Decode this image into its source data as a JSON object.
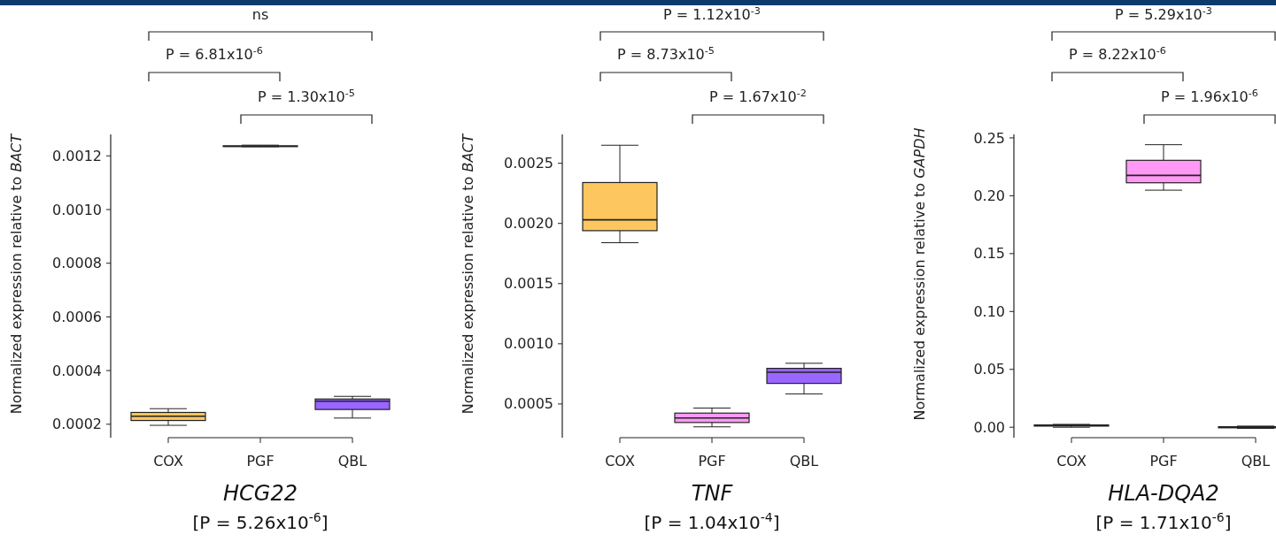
{
  "chart_data": [
    {
      "type": "box",
      "title": "HCG22",
      "subtitle": "[P = 5.26x10$^{-6}$]",
      "ylabel": "Normalized expression relative to BACT",
      "categories": [
        "COX",
        "PGF",
        "QBL"
      ],
      "colors": [
        "#fdc65f",
        "#ff99f5",
        "#9966ff"
      ],
      "ylim": [
        0.00015,
        0.00128
      ],
      "yticks": [
        0.0002,
        0.0004,
        0.0006,
        0.0008,
        {
          "value": 0.001,
          "label": "0.0010"
        },
        0.0012
      ],
      "boxes": [
        {
          "low": 0.000196,
          "q1": 0.000214,
          "median": 0.00023,
          "q3": 0.000244,
          "high": 0.000258
        },
        {
          "low": 0.001234,
          "q1": 0.001235,
          "median": 0.001236,
          "q3": 0.001237,
          "high": 0.00124
        },
        {
          "low": 0.000223,
          "q1": 0.000255,
          "median": 0.000286,
          "q3": 0.000294,
          "high": 0.000304
        }
      ],
      "annotations": [
        "ns",
        "P = 6.81x10$^{-6}$",
        "P = 1.30x10$^{-5}$"
      ]
    },
    {
      "type": "box",
      "title": "TNF",
      "subtitle": "[P = 1.04x10$^{-4}$]",
      "ylabel": "Normalized expression relative to BACT",
      "categories": [
        "COX",
        "PGF",
        "QBL"
      ],
      "colors": [
        "#fdc65f",
        "#ff99f5",
        "#9966ff"
      ],
      "ylim": [
        0.00022,
        0.00274
      ],
      "yticks": [
        0.0005,
        {
          "value": 0.001,
          "label": "0.0010"
        },
        0.0015,
        {
          "value": 0.002,
          "label": "0.0020"
        },
        0.0025
      ],
      "boxes": [
        {
          "low": 0.00184,
          "q1": 0.00194,
          "median": 0.00203,
          "q3": 0.00234,
          "high": 0.00265
        },
        {
          "low": 0.00031,
          "q1": 0.000346,
          "median": 0.000383,
          "q3": 0.000424,
          "high": 0.000466
        },
        {
          "low": 0.000583,
          "q1": 0.000671,
          "median": 0.000764,
          "q3": 0.000796,
          "high": 0.000838
        }
      ],
      "annotations": [
        "P = 1.12x10$^{-3}$",
        "P = 8.73x10$^{-5}$",
        "P = 1.67x10$^{-2}$"
      ]
    },
    {
      "type": "box",
      "title": "HLA-DQA2",
      "subtitle": "[P = 1.71x10$^{-6}$]",
      "ylabel": "Normalized expression relative to GAPDH",
      "categories": [
        "COX",
        "PGF",
        "QBL"
      ],
      "colors": [
        "#fdc65f",
        "#ff99f5",
        "#9966ff"
      ],
      "ylim": [
        -0.009,
        0.253
      ],
      "yticks": [
        {
          "value": 0,
          "label": "0.00"
        },
        0.05,
        {
          "value": 0.1,
          "label": "0.10"
        },
        0.15,
        {
          "value": 0.2,
          "label": "0.20"
        },
        0.25
      ],
      "boxes": [
        {
          "low": 0,
          "q1": 0.001,
          "median": 0.0015,
          "q3": 0.002,
          "high": 0.0025
        },
        {
          "low": 0.2048,
          "q1": 0.2112,
          "median": 0.2176,
          "q3": 0.2306,
          "high": 0.2441
        },
        {
          "low": -0.001,
          "q1": -0.0005,
          "median": 0,
          "q3": 0.0005,
          "high": 0.001
        }
      ],
      "annotations": [
        "P = 5.29x10$^{-3}$",
        "P = 8.22x10$^{-6}$",
        "P = 1.96x10$^{-6}$"
      ]
    }
  ]
}
